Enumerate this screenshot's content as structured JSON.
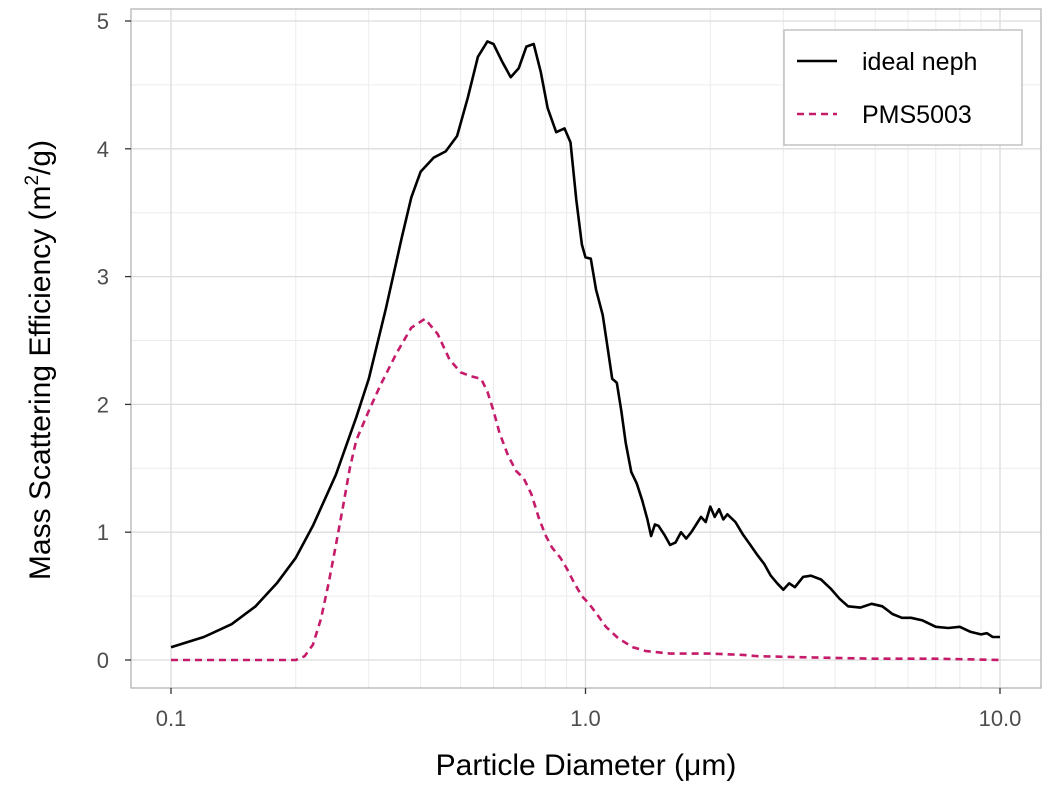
{
  "colors": {
    "background": "#ffffff",
    "panel_border": "#b3b3b3",
    "grid_major": "#dcdcdc",
    "grid_minor": "#ececec",
    "tick_text": "#4d4d4d",
    "ideal_neph": "#000000",
    "pms5003": "#c51b6a"
  },
  "chart_data": {
    "type": "line",
    "title": "",
    "xlabel": "Particle Diameter (μm)",
    "ylabel_prefix": "Mass Scattering Efficiency (m",
    "ylabel_sup": "2",
    "ylabel_suffix": "/g)",
    "x_scale": "log",
    "xlim": [
      0.1,
      10.0
    ],
    "ylim": [
      0,
      5
    ],
    "x_ticks": [
      {
        "value": 0.1,
        "label": "0.1"
      },
      {
        "value": 1.0,
        "label": "1.0"
      },
      {
        "value": 10.0,
        "label": "10.0"
      }
    ],
    "y_ticks": [
      {
        "value": 0,
        "label": "0"
      },
      {
        "value": 1,
        "label": "1"
      },
      {
        "value": 2,
        "label": "2"
      },
      {
        "value": 3,
        "label": "3"
      },
      {
        "value": 4,
        "label": "4"
      },
      {
        "value": 5,
        "label": "5"
      }
    ],
    "grid": true,
    "legend_position": "top-right",
    "series": [
      {
        "name": "ideal neph",
        "style": "solid",
        "color": "#000000",
        "points": [
          [
            0.1,
            0.1
          ],
          [
            0.12,
            0.18
          ],
          [
            0.14,
            0.28
          ],
          [
            0.16,
            0.42
          ],
          [
            0.18,
            0.6
          ],
          [
            0.2,
            0.8
          ],
          [
            0.22,
            1.05
          ],
          [
            0.25,
            1.45
          ],
          [
            0.28,
            1.9
          ],
          [
            0.3,
            2.2
          ],
          [
            0.33,
            2.75
          ],
          [
            0.36,
            3.3
          ],
          [
            0.38,
            3.62
          ],
          [
            0.4,
            3.82
          ],
          [
            0.43,
            3.93
          ],
          [
            0.46,
            3.98
          ],
          [
            0.49,
            4.1
          ],
          [
            0.52,
            4.4
          ],
          [
            0.55,
            4.72
          ],
          [
            0.58,
            4.84
          ],
          [
            0.6,
            4.82
          ],
          [
            0.63,
            4.68
          ],
          [
            0.66,
            4.56
          ],
          [
            0.69,
            4.63
          ],
          [
            0.72,
            4.8
          ],
          [
            0.75,
            4.82
          ],
          [
            0.78,
            4.6
          ],
          [
            0.81,
            4.32
          ],
          [
            0.85,
            4.13
          ],
          [
            0.89,
            4.16
          ],
          [
            0.92,
            4.05
          ],
          [
            0.95,
            3.6
          ],
          [
            0.98,
            3.25
          ],
          [
            1.0,
            3.15
          ],
          [
            1.03,
            3.14
          ],
          [
            1.06,
            2.9
          ],
          [
            1.1,
            2.7
          ],
          [
            1.13,
            2.45
          ],
          [
            1.16,
            2.2
          ],
          [
            1.19,
            2.17
          ],
          [
            1.22,
            1.95
          ],
          [
            1.25,
            1.7
          ],
          [
            1.29,
            1.47
          ],
          [
            1.33,
            1.38
          ],
          [
            1.37,
            1.25
          ],
          [
            1.41,
            1.1
          ],
          [
            1.44,
            0.97
          ],
          [
            1.47,
            1.06
          ],
          [
            1.5,
            1.05
          ],
          [
            1.55,
            0.98
          ],
          [
            1.6,
            0.9
          ],
          [
            1.65,
            0.92
          ],
          [
            1.7,
            1.0
          ],
          [
            1.75,
            0.95
          ],
          [
            1.8,
            1.0
          ],
          [
            1.85,
            1.06
          ],
          [
            1.9,
            1.12
          ],
          [
            1.95,
            1.08
          ],
          [
            2.0,
            1.2
          ],
          [
            2.05,
            1.12
          ],
          [
            2.1,
            1.18
          ],
          [
            2.15,
            1.1
          ],
          [
            2.2,
            1.14
          ],
          [
            2.3,
            1.08
          ],
          [
            2.4,
            0.98
          ],
          [
            2.5,
            0.9
          ],
          [
            2.6,
            0.82
          ],
          [
            2.7,
            0.75
          ],
          [
            2.8,
            0.66
          ],
          [
            2.9,
            0.6
          ],
          [
            3.0,
            0.55
          ],
          [
            3.1,
            0.6
          ],
          [
            3.2,
            0.57
          ],
          [
            3.35,
            0.65
          ],
          [
            3.5,
            0.66
          ],
          [
            3.7,
            0.63
          ],
          [
            3.9,
            0.56
          ],
          [
            4.1,
            0.48
          ],
          [
            4.3,
            0.42
          ],
          [
            4.6,
            0.41
          ],
          [
            4.9,
            0.44
          ],
          [
            5.2,
            0.42
          ],
          [
            5.5,
            0.36
          ],
          [
            5.8,
            0.33
          ],
          [
            6.1,
            0.33
          ],
          [
            6.5,
            0.31
          ],
          [
            7.0,
            0.26
          ],
          [
            7.5,
            0.25
          ],
          [
            8.0,
            0.26
          ],
          [
            8.5,
            0.22
          ],
          [
            9.0,
            0.2
          ],
          [
            9.3,
            0.21
          ],
          [
            9.6,
            0.18
          ],
          [
            10.0,
            0.18
          ]
        ]
      },
      {
        "name": "PMS5003",
        "style": "dashed",
        "color": "#c51b6a",
        "points": [
          [
            0.1,
            0.0
          ],
          [
            0.15,
            0.0
          ],
          [
            0.2,
            0.0
          ],
          [
            0.21,
            0.03
          ],
          [
            0.22,
            0.12
          ],
          [
            0.23,
            0.32
          ],
          [
            0.24,
            0.6
          ],
          [
            0.25,
            0.9
          ],
          [
            0.26,
            1.2
          ],
          [
            0.27,
            1.5
          ],
          [
            0.28,
            1.72
          ],
          [
            0.3,
            1.95
          ],
          [
            0.32,
            2.15
          ],
          [
            0.35,
            2.4
          ],
          [
            0.38,
            2.6
          ],
          [
            0.41,
            2.67
          ],
          [
            0.44,
            2.55
          ],
          [
            0.47,
            2.35
          ],
          [
            0.5,
            2.25
          ],
          [
            0.53,
            2.22
          ],
          [
            0.56,
            2.2
          ],
          [
            0.58,
            2.1
          ],
          [
            0.6,
            1.95
          ],
          [
            0.62,
            1.78
          ],
          [
            0.65,
            1.6
          ],
          [
            0.68,
            1.48
          ],
          [
            0.71,
            1.42
          ],
          [
            0.74,
            1.3
          ],
          [
            0.77,
            1.12
          ],
          [
            0.8,
            0.98
          ],
          [
            0.83,
            0.88
          ],
          [
            0.87,
            0.8
          ],
          [
            0.9,
            0.72
          ],
          [
            0.94,
            0.6
          ],
          [
            0.98,
            0.5
          ],
          [
            1.02,
            0.44
          ],
          [
            1.07,
            0.35
          ],
          [
            1.12,
            0.26
          ],
          [
            1.2,
            0.17
          ],
          [
            1.3,
            0.1
          ],
          [
            1.4,
            0.07
          ],
          [
            1.6,
            0.05
          ],
          [
            2.0,
            0.05
          ],
          [
            2.4,
            0.04
          ],
          [
            2.6,
            0.03
          ],
          [
            3.5,
            0.02
          ],
          [
            5.0,
            0.01
          ],
          [
            7.0,
            0.01
          ],
          [
            10.0,
            0.0
          ]
        ]
      }
    ]
  }
}
